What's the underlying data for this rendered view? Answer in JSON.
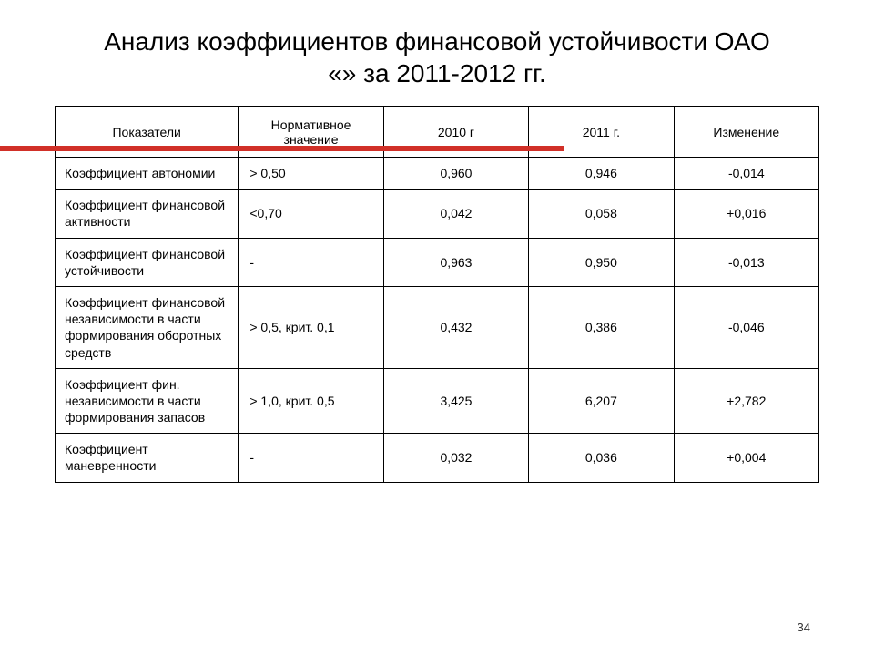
{
  "title": "Анализ коэффициентов финансовой устойчивости ОАО «» за 2011-2012 гг.",
  "slide_number": "34",
  "table": {
    "headers": {
      "c1": "Показатели",
      "c2": "Нормативное значение",
      "c3": "2010 г",
      "c4": "2011 г.",
      "c5": "Изменение"
    },
    "rows": [
      {
        "label": "Коэффициент автономии",
        "norm": "> 0,50",
        "y2010": "0,960",
        "y2011": "0,946",
        "delta": "-0,014"
      },
      {
        "label": "Коэффициент финансовой активности",
        "norm": "<0,70",
        "y2010": "0,042",
        "y2011": "0,058",
        "delta": "+0,016"
      },
      {
        "label": "Коэффициент финансовой устойчивости",
        "norm": "-",
        "y2010": "0,963",
        "y2011": "0,950",
        "delta": "-0,013"
      },
      {
        "label": "Коэффициент финансовой независимости в части формирования оборотных средств",
        "norm": "> 0,5, крит. 0,1",
        "y2010": "0,432",
        "y2011": "0,386",
        "delta": "-0,046"
      },
      {
        "label": "Коэффициент фин. независимости в части формирования запасов",
        "norm": "> 1,0, крит. 0,5",
        "y2010": "3,425",
        "y2011": "6,207",
        "delta": "+2,782"
      },
      {
        "label": "Коэффициент маневренности",
        "norm": "-",
        "y2010": "0,032",
        "y2011": "0,036",
        "delta": "+0,004"
      }
    ]
  },
  "style": {
    "accent_bar_color": "#d13028",
    "border_color": "#000000",
    "background": "#ffffff",
    "title_fontsize": 28,
    "cell_fontsize": 14
  }
}
